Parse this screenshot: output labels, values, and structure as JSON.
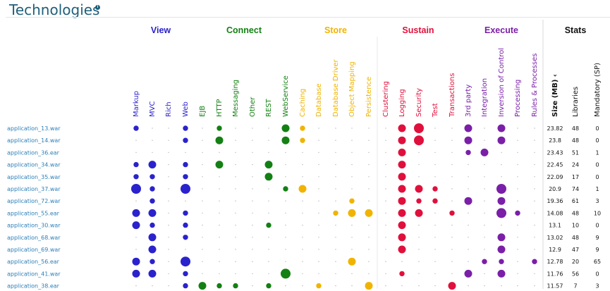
{
  "header": {
    "title": "Technologies",
    "info_icon": "info-icon"
  },
  "groups": [
    {
      "name": "View",
      "color": "#2a22cc"
    },
    {
      "name": "Connect",
      "color": "#138013"
    },
    {
      "name": "Store",
      "color": "#f0b400"
    },
    {
      "name": "Sustain",
      "color": "#e0103c"
    },
    {
      "name": "Execute",
      "color": "#7a1fa8"
    },
    {
      "name": "Stats",
      "color": "#111111"
    }
  ],
  "columns": [
    {
      "label": "Markup",
      "group": 0
    },
    {
      "label": "MVC",
      "group": 0
    },
    {
      "label": "Rich",
      "group": 0
    },
    {
      "label": "Web",
      "group": 0
    },
    {
      "label": "EJB",
      "group": 1
    },
    {
      "label": "HTTP",
      "group": 1
    },
    {
      "label": "Messaging",
      "group": 1
    },
    {
      "label": "Other",
      "group": 1
    },
    {
      "label": "REST",
      "group": 1
    },
    {
      "label": "WebService",
      "group": 1
    },
    {
      "label": "Caching",
      "group": 2
    },
    {
      "label": "Database",
      "group": 2
    },
    {
      "label": "Database Driver",
      "group": 2
    },
    {
      "label": "Object Mapping",
      "group": 2
    },
    {
      "label": "Persistence",
      "group": 2
    },
    {
      "label": "Clustering",
      "group": 3
    },
    {
      "label": "Logging",
      "group": 3
    },
    {
      "label": "Security",
      "group": 3
    },
    {
      "label": "Test",
      "group": 3
    },
    {
      "label": "Transactions",
      "group": 3
    },
    {
      "label": "3rd party",
      "group": 4
    },
    {
      "label": "Integration",
      "group": 4
    },
    {
      "label": "Inversion of Control",
      "group": 4
    },
    {
      "label": "Processing",
      "group": 4
    },
    {
      "label": "Rules & Processes",
      "group": 4
    }
  ],
  "stats_columns": [
    "Size (MB) ‹",
    "Libraries",
    "Mandatory (SP)"
  ],
  "rows": [
    {
      "name": "application_13.war",
      "stats": [
        "23.82",
        "48",
        "0"
      ],
      "dots": [
        2,
        0,
        0,
        2,
        0,
        2,
        0,
        0,
        0,
        3,
        2,
        0,
        0,
        0,
        0,
        0,
        3,
        4,
        0,
        0,
        3,
        0,
        3,
        0,
        0
      ]
    },
    {
      "name": "application_14.war",
      "stats": [
        "23.8",
        "48",
        "0"
      ],
      "dots": [
        0,
        0,
        0,
        2,
        0,
        3,
        0,
        0,
        0,
        3,
        2,
        0,
        0,
        0,
        0,
        0,
        3,
        4,
        0,
        0,
        3,
        0,
        3,
        0,
        0
      ]
    },
    {
      "name": "application_36.ear",
      "stats": [
        "23.43",
        "51",
        "1"
      ],
      "dots": [
        0,
        0,
        0,
        0,
        0,
        0,
        0,
        0,
        0,
        0,
        0,
        0,
        0,
        0,
        0,
        0,
        3,
        0,
        0,
        0,
        2,
        3,
        0,
        0,
        0
      ]
    },
    {
      "name": "application_34.war",
      "stats": [
        "22.45",
        "24",
        "0"
      ],
      "dots": [
        2,
        3,
        0,
        2,
        0,
        3,
        0,
        0,
        3,
        0,
        0,
        0,
        0,
        0,
        0,
        0,
        3,
        0,
        0,
        0,
        0,
        0,
        0,
        0,
        0
      ]
    },
    {
      "name": "application_35.war",
      "stats": [
        "22.09",
        "17",
        "0"
      ],
      "dots": [
        2,
        2,
        0,
        2,
        0,
        0,
        0,
        0,
        3,
        0,
        0,
        0,
        0,
        0,
        0,
        0,
        3,
        0,
        0,
        0,
        0,
        0,
        0,
        0,
        0
      ]
    },
    {
      "name": "application_37.war",
      "stats": [
        "20.9",
        "74",
        "1"
      ],
      "dots": [
        4,
        2,
        0,
        4,
        0,
        0,
        0,
        0,
        0,
        2,
        3,
        0,
        0,
        0,
        0,
        0,
        3,
        3,
        2,
        0,
        0,
        0,
        4,
        0,
        0
      ]
    },
    {
      "name": "application_72.war",
      "stats": [
        "19.36",
        "61",
        "3"
      ],
      "dots": [
        0,
        2,
        0,
        0,
        0,
        0,
        0,
        0,
        0,
        0,
        0,
        0,
        0,
        2,
        0,
        0,
        3,
        2,
        2,
        0,
        3,
        0,
        3,
        0,
        0
      ]
    },
    {
      "name": "application_55.ear",
      "stats": [
        "14.08",
        "48",
        "10"
      ],
      "dots": [
        3,
        3,
        0,
        2,
        0,
        0,
        0,
        0,
        0,
        0,
        0,
        0,
        2,
        3,
        3,
        0,
        3,
        3,
        0,
        2,
        0,
        0,
        4,
        2,
        0
      ]
    },
    {
      "name": "application_30.war",
      "stats": [
        "13.1",
        "10",
        "0"
      ],
      "dots": [
        3,
        2,
        0,
        2,
        0,
        0,
        0,
        0,
        2,
        0,
        0,
        0,
        0,
        0,
        0,
        0,
        3,
        0,
        0,
        0,
        0,
        0,
        0,
        0,
        0
      ]
    },
    {
      "name": "application_68.war",
      "stats": [
        "13.02",
        "48",
        "9"
      ],
      "dots": [
        0,
        3,
        0,
        2,
        0,
        0,
        0,
        0,
        0,
        0,
        0,
        0,
        0,
        0,
        0,
        0,
        3,
        0,
        0,
        0,
        0,
        0,
        3,
        0,
        0
      ]
    },
    {
      "name": "application_69.war",
      "stats": [
        "12.9",
        "47",
        "9"
      ],
      "dots": [
        0,
        3,
        0,
        0,
        0,
        0,
        0,
        0,
        0,
        0,
        0,
        0,
        0,
        0,
        0,
        0,
        3,
        0,
        0,
        0,
        0,
        0,
        3,
        0,
        0
      ]
    },
    {
      "name": "application_56.ear",
      "stats": [
        "12.78",
        "20",
        "65"
      ],
      "dots": [
        3,
        2,
        0,
        4,
        0,
        0,
        0,
        0,
        0,
        0,
        0,
        0,
        0,
        3,
        0,
        0,
        0,
        0,
        0,
        0,
        0,
        2,
        2,
        0,
        2
      ]
    },
    {
      "name": "application_41.war",
      "stats": [
        "11.76",
        "56",
        "0"
      ],
      "dots": [
        3,
        3,
        0,
        2,
        0,
        0,
        0,
        0,
        0,
        4,
        0,
        0,
        0,
        0,
        0,
        0,
        2,
        0,
        0,
        0,
        3,
        0,
        3,
        0,
        0
      ]
    },
    {
      "name": "application_38.ear",
      "stats": [
        "11.57",
        "7",
        "3"
      ],
      "dots": [
        0,
        0,
        0,
        2,
        3,
        2,
        2,
        0,
        2,
        0,
        0,
        2,
        0,
        0,
        3,
        0,
        0,
        0,
        0,
        3,
        0,
        0,
        0,
        0,
        0
      ]
    }
  ]
}
